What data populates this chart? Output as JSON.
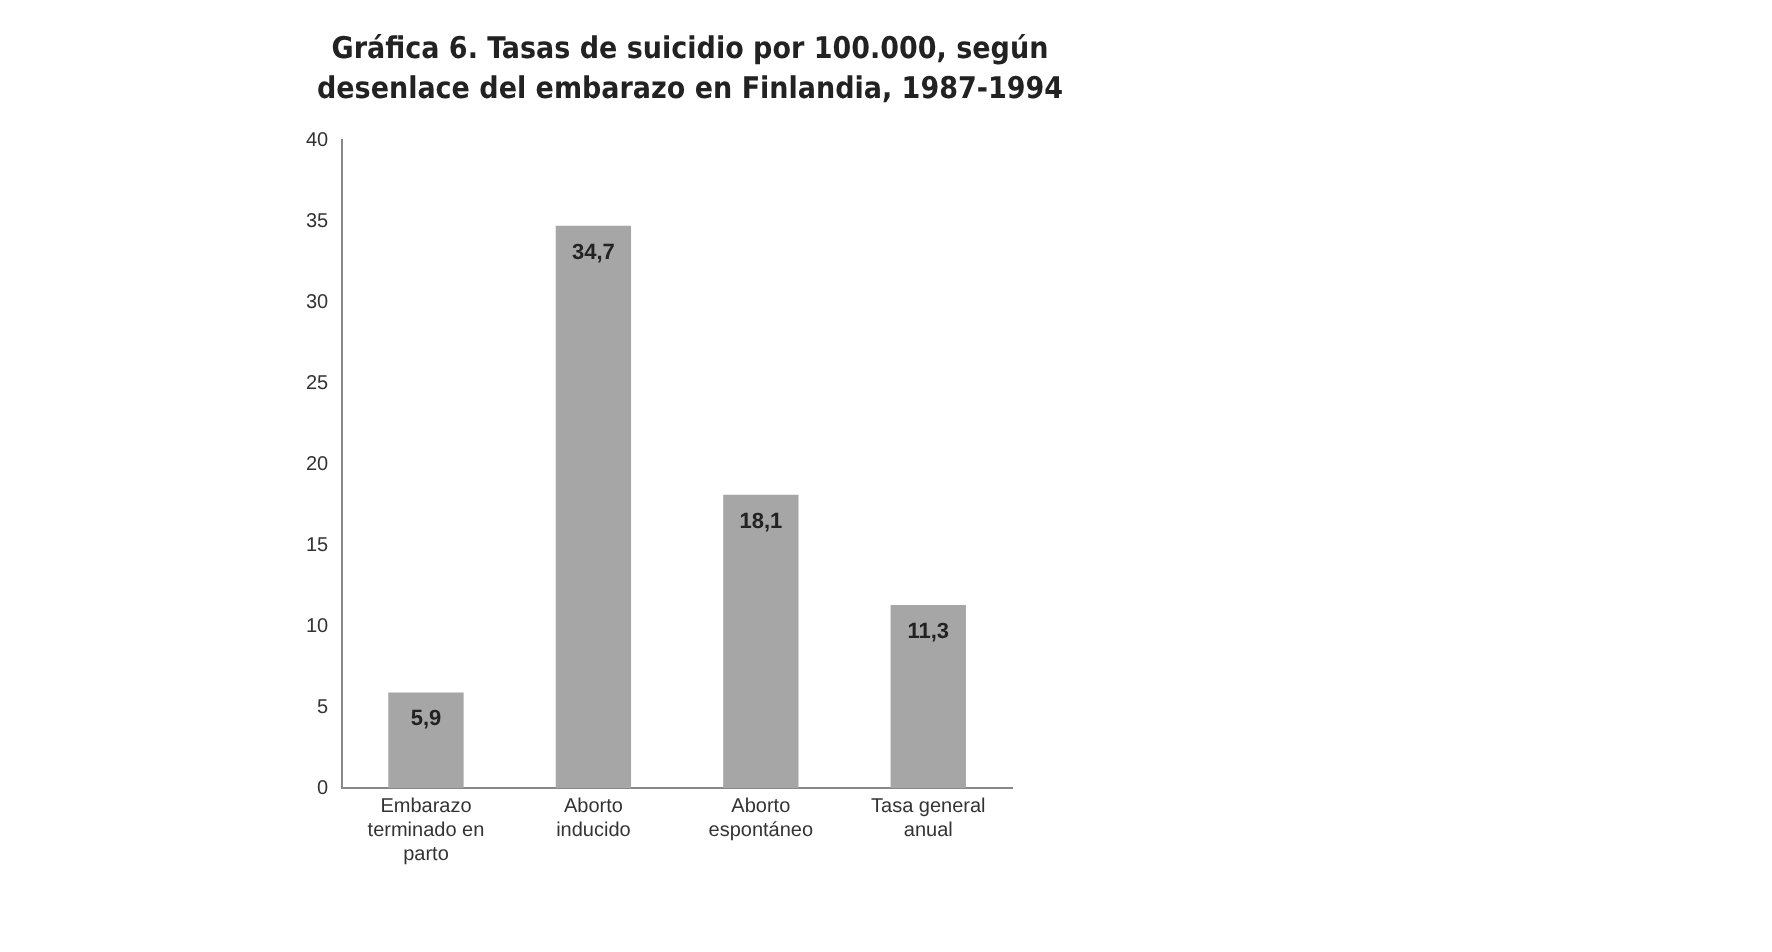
{
  "chart_data": {
    "type": "bar",
    "title": "Gráfica 6. Tasas de suicidio por 100.000, según desenlace del embarazo en Finlandia, 1987-1994",
    "categories": [
      "Embarazo terminado en parto",
      "Aborto inducido",
      "Aborto espontáneo",
      "Tasa general anual"
    ],
    "values": [
      5.9,
      34.7,
      18.1,
      11.3
    ],
    "value_labels": [
      "5,9",
      "34,7",
      "18,1",
      "11,3"
    ],
    "color": "#a6a6a6",
    "ylim": [
      0,
      40
    ],
    "yticks": [
      0,
      5,
      10,
      15,
      20,
      25,
      30,
      35,
      40
    ],
    "grid": false,
    "legend": false
  }
}
